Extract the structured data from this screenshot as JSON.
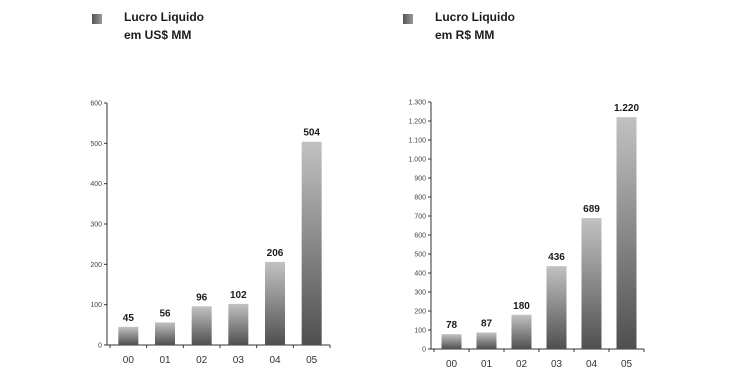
{
  "chart_data": [
    {
      "type": "bar",
      "title_lines": [
        "Lucro Liquido",
        "em US$ MM"
      ],
      "categories": [
        "00",
        "01",
        "02",
        "03",
        "04",
        "05"
      ],
      "values": [
        45,
        56,
        96,
        102,
        206,
        504
      ],
      "data_labels": [
        "45",
        "56",
        "96",
        "102",
        "206",
        "504"
      ],
      "ylim": [
        0,
        600
      ],
      "yticks": [
        0,
        100,
        200,
        300,
        400,
        500,
        600
      ],
      "ytick_labels": [
        "0",
        "100",
        "200",
        "300",
        "400",
        "500",
        "600"
      ],
      "grid": false,
      "bar_color_dark": "#4f4f4f",
      "bar_color_light": "#c2c2c2"
    },
    {
      "type": "bar",
      "title_lines": [
        "Lucro Liquido",
        "em R$ MM"
      ],
      "categories": [
        "00",
        "01",
        "02",
        "03",
        "04",
        "05"
      ],
      "values": [
        78,
        87,
        180,
        436,
        689,
        1220
      ],
      "data_labels": [
        "78",
        "87",
        "180",
        "436",
        "689",
        "1.220"
      ],
      "ylim": [
        0,
        1300
      ],
      "yticks": [
        0,
        100,
        200,
        300,
        400,
        500,
        600,
        700,
        800,
        900,
        1000,
        1100,
        1200,
        1300
      ],
      "ytick_labels": [
        "0",
        "100",
        "200",
        "300",
        "400",
        "500",
        "600",
        "700",
        "800",
        "900",
        "1.000",
        "1.100",
        "1.200",
        "1.300"
      ],
      "grid": false,
      "bar_color_dark": "#4f4f4f",
      "bar_color_light": "#c2c2c2"
    }
  ]
}
